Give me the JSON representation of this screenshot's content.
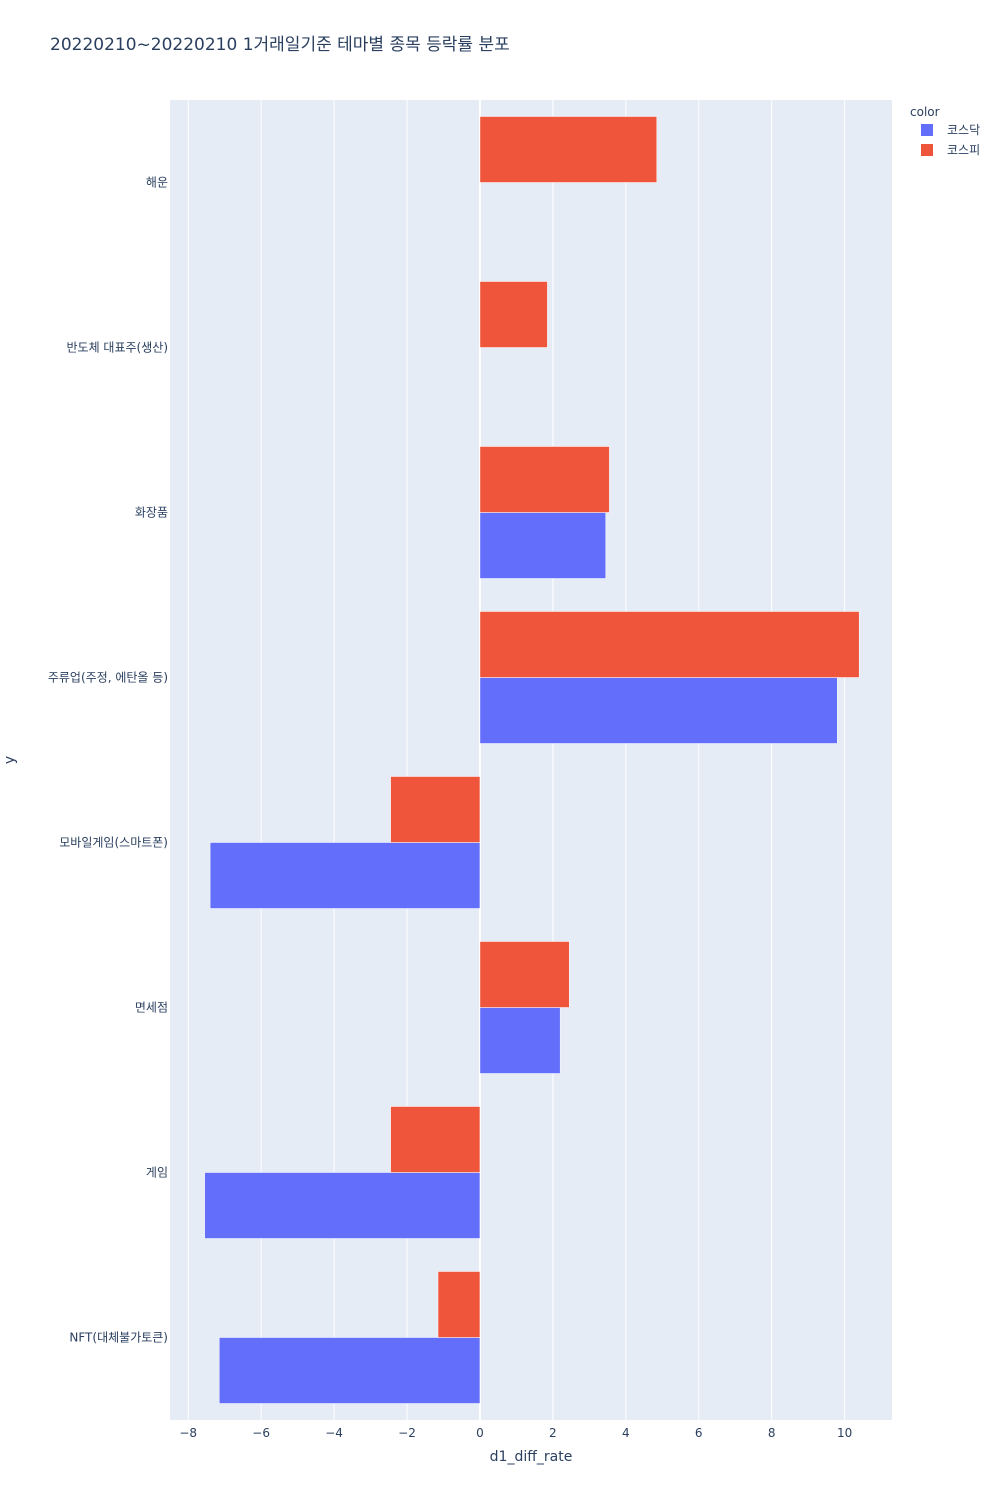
{
  "chart_data": {
    "type": "bar",
    "orientation": "horizontal",
    "barmode": "group",
    "title": "20220210~20220210 1거래일기준 테마별 종목 등락률 분포",
    "xlabel": "d1_diff_rate",
    "ylabel": "y",
    "xlim": [
      -8.5,
      11.3
    ],
    "xticks": [
      -8,
      -6,
      -4,
      -2,
      0,
      2,
      4,
      6,
      8,
      10
    ],
    "xtick_labels": [
      "−8",
      "−6",
      "−4",
      "−2",
      "0",
      "2",
      "4",
      "6",
      "8",
      "10"
    ],
    "grid": true,
    "legend": {
      "title": "color",
      "placement": "top-right"
    },
    "categories": [
      "해운",
      "반도체 대표주(생산)",
      "화장품",
      "주류업(주정, 에탄올 등)",
      "모바일게임(스마트폰)",
      "면세점",
      "게임",
      "NFT(대체불가토큰)"
    ],
    "series": [
      {
        "name": "코스닥",
        "color": "#636efa",
        "values": [
          null,
          null,
          3.45,
          9.8,
          -7.4,
          2.2,
          -7.55,
          -7.15
        ]
      },
      {
        "name": "코스피",
        "color": "#ef553b",
        "values": [
          4.85,
          1.85,
          3.55,
          10.4,
          -2.45,
          2.45,
          -2.45,
          -1.15
        ]
      }
    ]
  },
  "colors": {
    "plot_background": "#e5ecf6",
    "grid": "#ffffff",
    "text": "#2a3f5f"
  }
}
